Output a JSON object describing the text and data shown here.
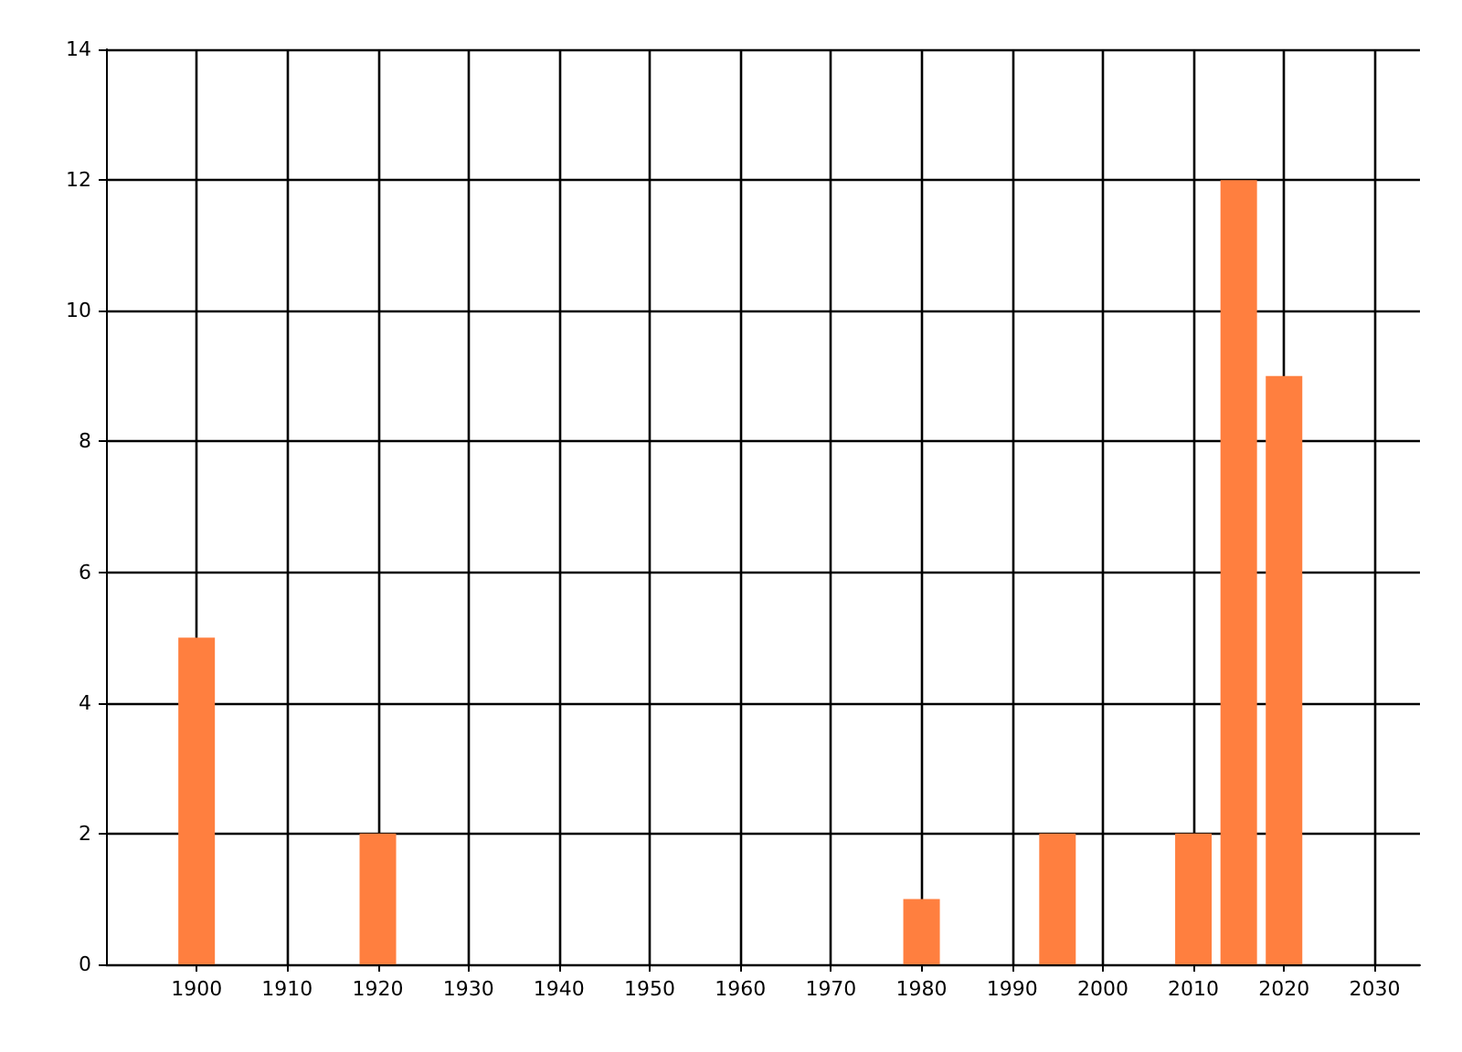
{
  "chart_data": {
    "type": "bar",
    "x": [
      1900,
      1920,
      1980,
      1995,
      2010,
      2015,
      2020
    ],
    "values": [
      5,
      2,
      1,
      2,
      2,
      12,
      9
    ],
    "color": "#ff7f3f",
    "xlim": [
      1890,
      2035
    ],
    "xticks": [
      1900,
      1910,
      1920,
      1930,
      1940,
      1950,
      1960,
      1970,
      1980,
      1990,
      2000,
      2010,
      2020,
      2030
    ],
    "ylim": [
      0,
      14
    ],
    "yticks": [
      0,
      2,
      4,
      6,
      8,
      10,
      12,
      14
    ],
    "grid": true
  }
}
